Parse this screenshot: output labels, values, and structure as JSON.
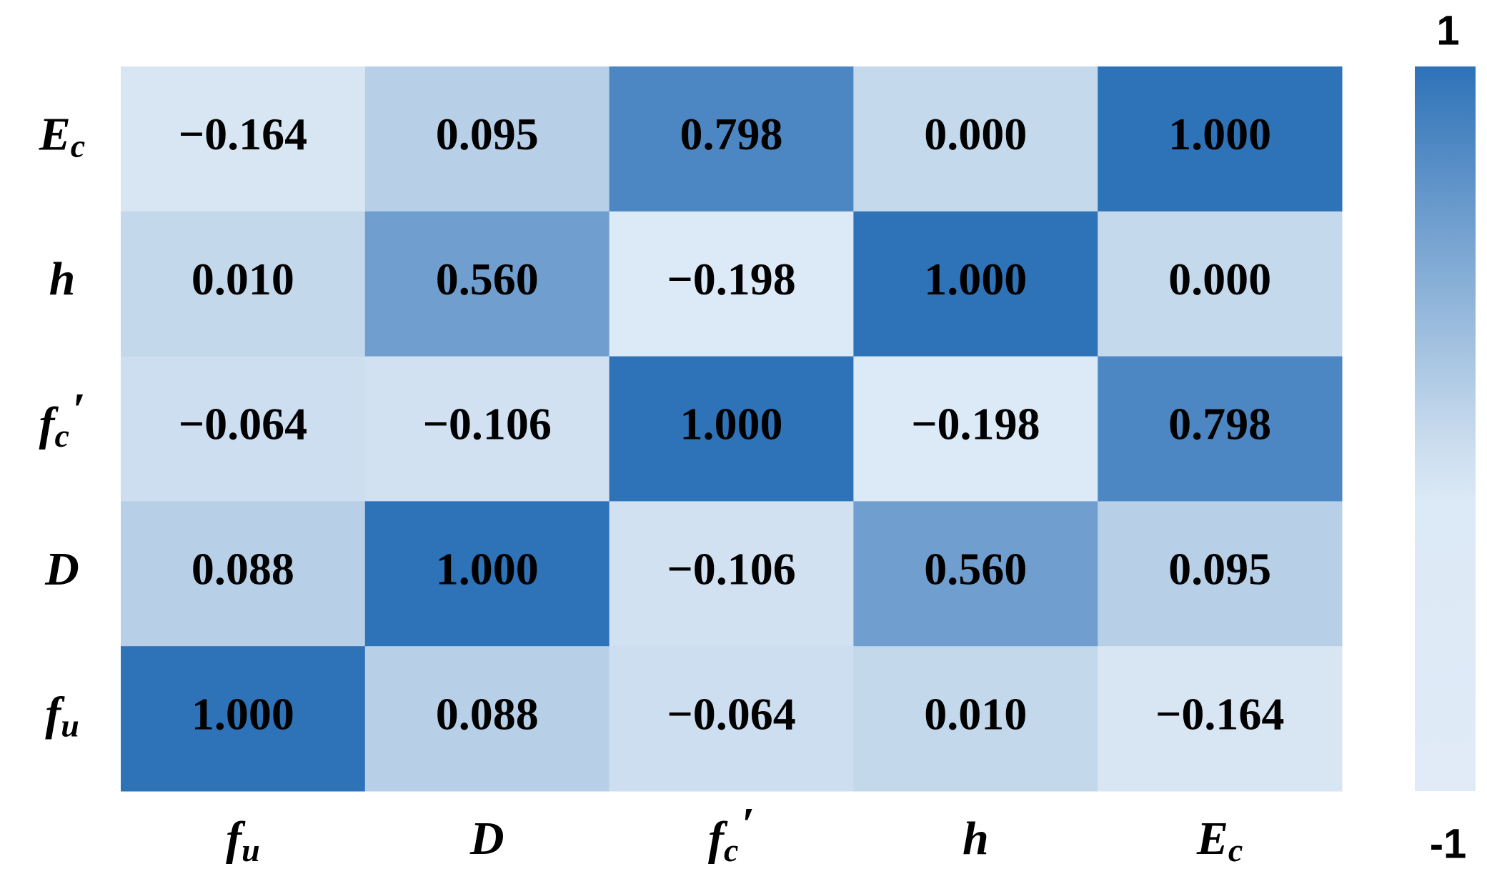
{
  "chart_data": {
    "type": "heatmap",
    "x": [
      {
        "text": "f",
        "sub": "u"
      },
      {
        "text": "D"
      },
      {
        "text": "f",
        "sub": "c",
        "sup": "′"
      },
      {
        "text": "h"
      },
      {
        "text": "E",
        "sub": "c"
      }
    ],
    "y": [
      {
        "text": "E",
        "sub": "c"
      },
      {
        "text": "h"
      },
      {
        "text": "f",
        "sub": "c",
        "sup": "′"
      },
      {
        "text": "D"
      },
      {
        "text": "f",
        "sub": "u"
      }
    ],
    "values": [
      [
        -0.164,
        0.095,
        0.798,
        0.0,
        1.0
      ],
      [
        0.01,
        0.56,
        -0.198,
        1.0,
        0.0
      ],
      [
        -0.064,
        -0.106,
        1.0,
        -0.198,
        0.798
      ],
      [
        0.088,
        1.0,
        -0.106,
        0.56,
        0.095
      ],
      [
        1.0,
        0.088,
        -0.064,
        0.01,
        -0.164
      ]
    ],
    "value_labels": [
      [
        "−0.164",
        "0.095",
        "0.798",
        "0.000",
        "1.000"
      ],
      [
        "0.010",
        "0.560",
        "−0.198",
        "1.000",
        "0.000"
      ],
      [
        "−0.064",
        "−0.106",
        "1.000",
        "−0.198",
        "0.798"
      ],
      [
        "0.088",
        "1.000",
        "−0.106",
        "0.560",
        "0.095"
      ],
      [
        "1.000",
        "0.088",
        "−0.064",
        "0.010",
        "−0.164"
      ]
    ],
    "colorbar": {
      "lim": [
        -1,
        1
      ],
      "ticks": [
        1,
        -1
      ],
      "colorscale": [
        [
          -1,
          "#e0ebf7"
        ],
        [
          -0.2,
          "#dce9f6"
        ],
        [
          0,
          "#c5d9ec"
        ],
        [
          1,
          "#2e72b8"
        ]
      ]
    }
  }
}
